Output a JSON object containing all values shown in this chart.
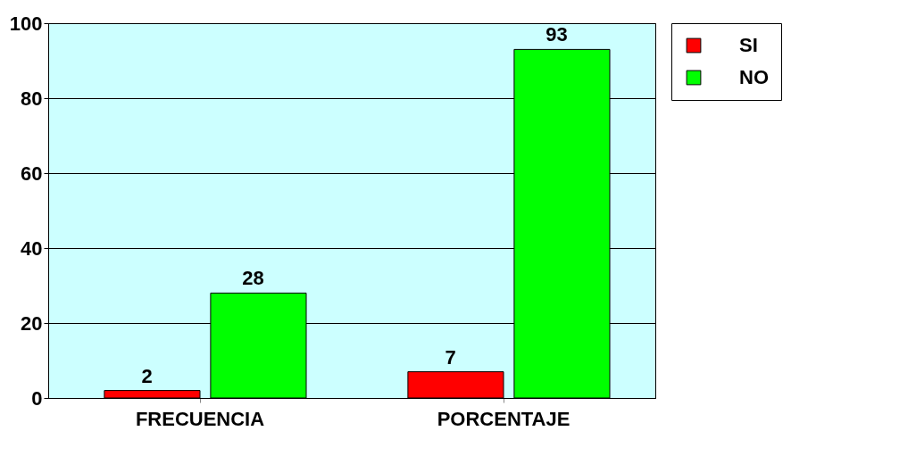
{
  "chart_data": {
    "type": "bar",
    "categories": [
      "FRECUENCIA",
      "PORCENTAJE"
    ],
    "series": [
      {
        "name": "SI",
        "color": "#ff0000",
        "values": [
          2,
          7
        ]
      },
      {
        "name": "NO",
        "color": "#00ff00",
        "values": [
          28,
          93
        ]
      }
    ],
    "ylim": [
      0,
      100
    ],
    "yticks": [
      0,
      20,
      40,
      60,
      80,
      100
    ],
    "grid": "y",
    "legend": "right",
    "data_labels": true
  }
}
